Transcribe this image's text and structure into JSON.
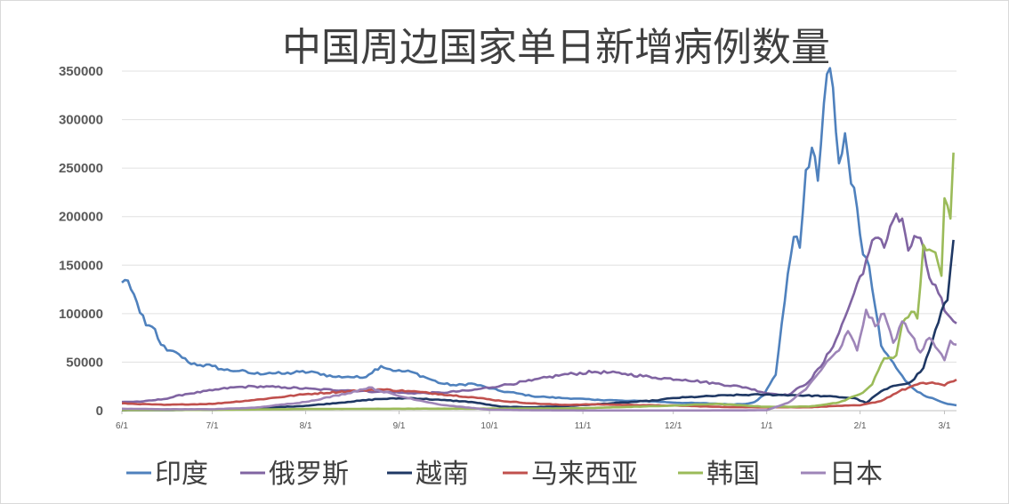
{
  "chart_data": {
    "type": "line",
    "title": "中国周边国家单日新增病例数量",
    "xlabel": "",
    "ylabel": "",
    "ylim": [
      0,
      350000
    ],
    "y_ticks": [
      "0",
      "50000",
      "100000",
      "150000",
      "200000",
      "250000",
      "300000",
      "350000"
    ],
    "x_range": [
      "2021-06-01",
      "2022-03-05"
    ],
    "x_ticks": [
      {
        "date": "2021-06-01",
        "label": "6/1"
      },
      {
        "date": "2021-07-01",
        "label": "7/1"
      },
      {
        "date": "2021-08-01",
        "label": "8/1"
      },
      {
        "date": "2021-09-01",
        "label": "9/1"
      },
      {
        "date": "2021-10-01",
        "label": "10/1"
      },
      {
        "date": "2021-11-01",
        "label": "11/1"
      },
      {
        "date": "2021-12-01",
        "label": "12/1"
      },
      {
        "date": "2022-01-01",
        "label": "1/1"
      },
      {
        "date": "2022-02-01",
        "label": "2/1"
      },
      {
        "date": "2022-03-01",
        "label": "3/1"
      }
    ],
    "grid": true,
    "legend_position": "bottom",
    "series": [
      {
        "name": "印度",
        "color": "#4f81bd",
        "points": [
          [
            "2021-06-01",
            132000
          ],
          [
            "2021-06-03",
            134000
          ],
          [
            "2021-06-05",
            120000
          ],
          [
            "2021-06-07",
            101000
          ],
          [
            "2021-06-09",
            88000
          ],
          [
            "2021-06-12",
            84000
          ],
          [
            "2021-06-14",
            68000
          ],
          [
            "2021-06-16",
            62000
          ],
          [
            "2021-06-20",
            58000
          ],
          [
            "2021-06-23",
            50000
          ],
          [
            "2021-06-27",
            47000
          ],
          [
            "2021-07-01",
            46000
          ],
          [
            "2021-07-05",
            42000
          ],
          [
            "2021-07-10",
            41000
          ],
          [
            "2021-07-15",
            38000
          ],
          [
            "2021-07-20",
            39000
          ],
          [
            "2021-07-25",
            38000
          ],
          [
            "2021-07-30",
            40000
          ],
          [
            "2021-08-05",
            39000
          ],
          [
            "2021-08-10",
            35000
          ],
          [
            "2021-08-15",
            35000
          ],
          [
            "2021-08-20",
            34000
          ],
          [
            "2021-08-26",
            46000
          ],
          [
            "2021-08-31",
            41000
          ],
          [
            "2021-09-05",
            40000
          ],
          [
            "2021-09-10",
            34000
          ],
          [
            "2021-09-15",
            28000
          ],
          [
            "2021-09-20",
            26000
          ],
          [
            "2021-09-25",
            28000
          ],
          [
            "2021-09-30",
            24000
          ],
          [
            "2021-10-05",
            20000
          ],
          [
            "2021-10-10",
            18000
          ],
          [
            "2021-10-15",
            15000
          ],
          [
            "2021-10-20",
            14000
          ],
          [
            "2021-10-25",
            13000
          ],
          [
            "2021-10-30",
            12500
          ],
          [
            "2021-11-05",
            11000
          ],
          [
            "2021-11-10",
            11000
          ],
          [
            "2021-11-15",
            10000
          ],
          [
            "2021-11-20",
            10000
          ],
          [
            "2021-11-25",
            9500
          ],
          [
            "2021-11-30",
            8500
          ],
          [
            "2021-12-05",
            8000
          ],
          [
            "2021-12-10",
            7800
          ],
          [
            "2021-12-15",
            7200
          ],
          [
            "2021-12-20",
            6500
          ],
          [
            "2021-12-25",
            7000
          ],
          [
            "2021-12-28",
            9000
          ],
          [
            "2021-12-31",
            16000
          ],
          [
            "2022-01-02",
            27000
          ],
          [
            "2022-01-04",
            37000
          ],
          [
            "2022-01-06",
            90000
          ],
          [
            "2022-01-08",
            141000
          ],
          [
            "2022-01-10",
            179000
          ],
          [
            "2022-01-12",
            168000
          ],
          [
            "2022-01-14",
            248000
          ],
          [
            "2022-01-16",
            271000
          ],
          [
            "2022-01-18",
            237000
          ],
          [
            "2022-01-20",
            317000
          ],
          [
            "2022-01-21",
            347000
          ],
          [
            "2022-01-23",
            333000
          ],
          [
            "2022-01-25",
            255000
          ],
          [
            "2022-01-27",
            286000
          ],
          [
            "2022-01-29",
            234000
          ],
          [
            "2022-01-31",
            209000
          ],
          [
            "2022-02-02",
            161000
          ],
          [
            "2022-02-04",
            149000
          ],
          [
            "2022-02-06",
            107000
          ],
          [
            "2022-02-08",
            67000
          ],
          [
            "2022-02-10",
            58000
          ],
          [
            "2022-02-13",
            44000
          ],
          [
            "2022-02-16",
            31000
          ],
          [
            "2022-02-19",
            22000
          ],
          [
            "2022-02-22",
            16000
          ],
          [
            "2022-02-25",
            13000
          ],
          [
            "2022-02-28",
            9000
          ],
          [
            "2022-03-02",
            7000
          ],
          [
            "2022-03-05",
            5500
          ]
        ]
      },
      {
        "name": "俄罗斯",
        "color": "#8064a2",
        "points": [
          [
            "2021-06-01",
            9000
          ],
          [
            "2021-06-08",
            9500
          ],
          [
            "2021-06-15",
            12000
          ],
          [
            "2021-06-22",
            17000
          ],
          [
            "2021-07-01",
            21000
          ],
          [
            "2021-07-08",
            24000
          ],
          [
            "2021-07-15",
            25000
          ],
          [
            "2021-07-25",
            24000
          ],
          [
            "2021-08-05",
            22000
          ],
          [
            "2021-08-15",
            21000
          ],
          [
            "2021-08-25",
            19500
          ],
          [
            "2021-09-05",
            18000
          ],
          [
            "2021-09-15",
            18500
          ],
          [
            "2021-09-25",
            21000
          ],
          [
            "2021-10-05",
            26000
          ],
          [
            "2021-10-15",
            31000
          ],
          [
            "2021-10-25",
            37000
          ],
          [
            "2021-11-05",
            40000
          ],
          [
            "2021-11-15",
            38000
          ],
          [
            "2021-11-25",
            34000
          ],
          [
            "2021-12-05",
            32000
          ],
          [
            "2021-12-15",
            28000
          ],
          [
            "2021-12-25",
            24000
          ],
          [
            "2022-01-01",
            18000
          ],
          [
            "2022-01-08",
            16000
          ],
          [
            "2022-01-15",
            30000
          ],
          [
            "2022-01-20",
            50000
          ],
          [
            "2022-01-25",
            80000
          ],
          [
            "2022-01-30",
            121000
          ],
          [
            "2022-02-03",
            155000
          ],
          [
            "2022-02-06",
            178000
          ],
          [
            "2022-02-09",
            168000
          ],
          [
            "2022-02-11",
            190000
          ],
          [
            "2022-02-13",
            203000
          ],
          [
            "2022-02-15",
            198000
          ],
          [
            "2022-02-17",
            165000
          ],
          [
            "2022-02-19",
            180000
          ],
          [
            "2022-02-21",
            178000
          ],
          [
            "2022-02-24",
            137000
          ],
          [
            "2022-02-27",
            121000
          ],
          [
            "2022-03-01",
            103000
          ],
          [
            "2022-03-03",
            96000
          ],
          [
            "2022-03-05",
            90000
          ]
        ]
      },
      {
        "name": "越南",
        "color": "#1f3864",
        "points": [
          [
            "2021-06-01",
            400
          ],
          [
            "2021-06-15",
            500
          ],
          [
            "2021-07-01",
            900
          ],
          [
            "2021-07-15",
            2500
          ],
          [
            "2021-08-01",
            5000
          ],
          [
            "2021-08-15",
            9000
          ],
          [
            "2021-08-25",
            12000
          ],
          [
            "2021-09-05",
            13000
          ],
          [
            "2021-09-15",
            11000
          ],
          [
            "2021-09-25",
            9000
          ],
          [
            "2021-10-05",
            4000
          ],
          [
            "2021-10-15",
            3500
          ],
          [
            "2021-10-25",
            4500
          ],
          [
            "2021-11-05",
            6500
          ],
          [
            "2021-11-15",
            8500
          ],
          [
            "2021-11-25",
            10500
          ],
          [
            "2021-12-01",
            13000
          ],
          [
            "2021-12-10",
            14500
          ],
          [
            "2021-12-20",
            16000
          ],
          [
            "2021-12-30",
            16500
          ],
          [
            "2022-01-10",
            16000
          ],
          [
            "2022-01-20",
            15000
          ],
          [
            "2022-01-30",
            13000
          ],
          [
            "2022-02-03",
            8000
          ],
          [
            "2022-02-08",
            20000
          ],
          [
            "2022-02-13",
            26000
          ],
          [
            "2022-02-18",
            30000
          ],
          [
            "2022-02-22",
            44000
          ],
          [
            "2022-02-25",
            72000
          ],
          [
            "2022-02-28",
            103000
          ],
          [
            "2022-03-02",
            114000
          ],
          [
            "2022-03-04",
            176000
          ]
        ]
      },
      {
        "name": "马来西亚",
        "color": "#c0504d",
        "points": [
          [
            "2021-06-01",
            7500
          ],
          [
            "2021-06-15",
            6000
          ],
          [
            "2021-07-01",
            7000
          ],
          [
            "2021-07-15",
            11000
          ],
          [
            "2021-08-01",
            17000
          ],
          [
            "2021-08-15",
            20000
          ],
          [
            "2021-08-25",
            22000
          ],
          [
            "2021-09-05",
            20000
          ],
          [
            "2021-09-15",
            17000
          ],
          [
            "2021-09-25",
            14000
          ],
          [
            "2021-10-05",
            10000
          ],
          [
            "2021-10-15",
            7500
          ],
          [
            "2021-10-25",
            6000
          ],
          [
            "2021-11-05",
            6500
          ],
          [
            "2021-11-15",
            6000
          ],
          [
            "2021-11-25",
            5500
          ],
          [
            "2021-12-05",
            5000
          ],
          [
            "2021-12-15",
            4000
          ],
          [
            "2021-12-25",
            3500
          ],
          [
            "2022-01-05",
            3500
          ],
          [
            "2022-01-15",
            3500
          ],
          [
            "2022-01-25",
            5000
          ],
          [
            "2022-02-01",
            5500
          ],
          [
            "2022-02-08",
            10000
          ],
          [
            "2022-02-14",
            20000
          ],
          [
            "2022-02-20",
            27000
          ],
          [
            "2022-02-25",
            29000
          ],
          [
            "2022-03-01",
            26000
          ],
          [
            "2022-03-05",
            32000
          ]
        ]
      },
      {
        "name": "韩国",
        "color": "#9bbb59",
        "points": [
          [
            "2021-06-01",
            600
          ],
          [
            "2021-07-01",
            800
          ],
          [
            "2021-08-01",
            1700
          ],
          [
            "2021-09-01",
            2000
          ],
          [
            "2021-10-01",
            2100
          ],
          [
            "2021-11-01",
            2500
          ],
          [
            "2021-12-01",
            5200
          ],
          [
            "2021-12-15",
            7000
          ],
          [
            "2022-01-01",
            4000
          ],
          [
            "2022-01-15",
            4200
          ],
          [
            "2022-01-25",
            8500
          ],
          [
            "2022-02-01",
            17000
          ],
          [
            "2022-02-05",
            27000
          ],
          [
            "2022-02-09",
            54000
          ],
          [
            "2022-02-13",
            57000
          ],
          [
            "2022-02-15",
            90000
          ],
          [
            "2022-02-18",
            102000
          ],
          [
            "2022-02-20",
            95000
          ],
          [
            "2022-02-22",
            171000
          ],
          [
            "2022-02-24",
            166000
          ],
          [
            "2022-02-26",
            163000
          ],
          [
            "2022-02-28",
            139000
          ],
          [
            "2022-03-01",
            219000
          ],
          [
            "2022-03-03",
            198000
          ],
          [
            "2022-03-04",
            266000
          ]
        ]
      },
      {
        "name": "日本",
        "color": "#9e85b8",
        "points": [
          [
            "2021-06-01",
            2000
          ],
          [
            "2021-06-15",
            1500
          ],
          [
            "2021-07-01",
            1500
          ],
          [
            "2021-07-15",
            3000
          ],
          [
            "2021-08-01",
            9000
          ],
          [
            "2021-08-15",
            18000
          ],
          [
            "2021-08-22",
            24000
          ],
          [
            "2021-09-01",
            15000
          ],
          [
            "2021-09-15",
            6000
          ],
          [
            "2021-10-01",
            1000
          ],
          [
            "2021-10-15",
            400
          ],
          [
            "2021-11-01",
            200
          ],
          [
            "2021-12-01",
            150
          ],
          [
            "2021-12-25",
            300
          ],
          [
            "2022-01-01",
            500
          ],
          [
            "2022-01-08",
            8000
          ],
          [
            "2022-01-14",
            22000
          ],
          [
            "2022-01-20",
            46000
          ],
          [
            "2022-01-25",
            62000
          ],
          [
            "2022-01-28",
            82000
          ],
          [
            "2022-01-31",
            62000
          ],
          [
            "2022-02-03",
            104000
          ],
          [
            "2022-02-06",
            87000
          ],
          [
            "2022-02-09",
            100000
          ],
          [
            "2022-02-12",
            70000
          ],
          [
            "2022-02-15",
            92000
          ],
          [
            "2022-02-18",
            78000
          ],
          [
            "2022-02-21",
            60000
          ],
          [
            "2022-02-24",
            75000
          ],
          [
            "2022-02-27",
            62000
          ],
          [
            "2022-03-01",
            52000
          ],
          [
            "2022-03-03",
            72000
          ],
          [
            "2022-03-05",
            68000
          ]
        ]
      }
    ]
  }
}
